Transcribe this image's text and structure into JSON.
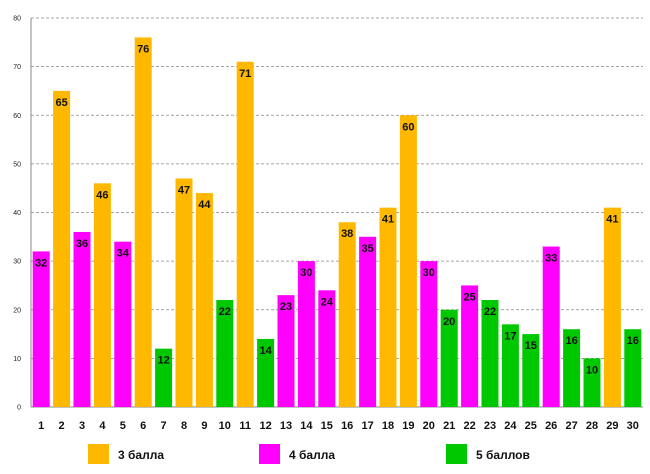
{
  "chart_data": {
    "type": "bar",
    "categories": [
      "1",
      "2",
      "3",
      "4",
      "5",
      "6",
      "7",
      "8",
      "9",
      "10",
      "11",
      "12",
      "13",
      "14",
      "15",
      "16",
      "17",
      "18",
      "19",
      "20",
      "21",
      "22",
      "23",
      "24",
      "25",
      "26",
      "27",
      "28",
      "29",
      "30"
    ],
    "values": [
      32,
      65,
      36,
      46,
      34,
      76,
      12,
      47,
      44,
      22,
      71,
      14,
      23,
      30,
      24,
      38,
      35,
      41,
      60,
      30,
      20,
      25,
      22,
      17,
      15,
      33,
      16,
      10,
      41,
      16
    ],
    "groups": [
      "4 балла",
      "3 балла",
      "4 балла",
      "3 балла",
      "4 балла",
      "3 балла",
      "5 баллов",
      "3 балла",
      "3 балла",
      "5 баллов",
      "3 балла",
      "5 баллов",
      "4 балла",
      "4 балла",
      "4 балла",
      "3 балла",
      "4 балла",
      "3 балла",
      "3 балла",
      "4 балла",
      "5 баллов",
      "4 балла",
      "5 баллов",
      "5 баллов",
      "5 баллов",
      "4 балла",
      "5 баллов",
      "5 баллов",
      "3 балла",
      "5 баллов"
    ],
    "ylim": [
      0,
      80
    ],
    "yticks": [
      0,
      10,
      20,
      30,
      40,
      50,
      60,
      70,
      80
    ],
    "grid": true,
    "legend": [
      {
        "name": "3 балла",
        "color": "#FFB800"
      },
      {
        "name": "4 балла",
        "color": "#FF00FF"
      },
      {
        "name": "5 баллов",
        "color": "#00C800"
      }
    ],
    "legend_position": "bottom"
  }
}
